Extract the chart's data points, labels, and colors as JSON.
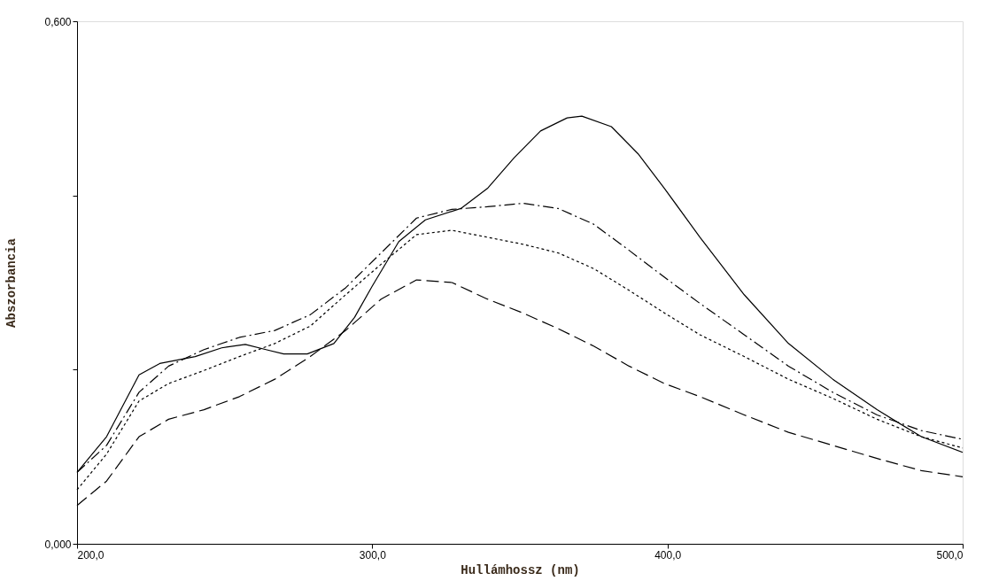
{
  "chart_data": {
    "type": "line",
    "xlabel": "Hullámhossz (nm)",
    "ylabel": "Abszorbancia",
    "xlim": [
      200,
      500
    ],
    "ylim": [
      0,
      0.6
    ],
    "xticks": [
      {
        "value": 200,
        "label": "200,0"
      },
      {
        "value": 300,
        "label": "300,0"
      },
      {
        "value": 400,
        "label": "400,0"
      },
      {
        "value": 500,
        "label": "500,0"
      }
    ],
    "yticks": [
      {
        "value": 0,
        "label": "0,000"
      },
      {
        "value": 0.2,
        "label": null
      },
      {
        "value": 0.4,
        "label": null
      },
      {
        "value": 0.6,
        "label": "0,600"
      }
    ],
    "x": [
      200,
      210,
      221,
      231,
      243,
      255,
      267,
      279,
      291,
      303,
      315,
      327,
      339,
      351,
      363,
      375,
      387,
      399,
      411,
      426,
      441,
      456,
      471,
      486,
      500
    ],
    "grid": false,
    "legend": false,
    "marker": "none",
    "series": [
      {
        "color": "#000000",
        "line_style": "solid",
        "x": [
          200,
          210,
          221,
          228,
          240,
          249,
          257,
          264,
          270,
          278,
          287,
          294,
          300,
          309,
          318,
          330,
          339,
          348,
          357,
          366,
          371,
          381,
          390,
          399,
          411,
          426,
          441,
          456,
          471,
          486,
          500
        ],
        "values": [
          0.082,
          0.123,
          0.194,
          0.207,
          0.215,
          0.225,
          0.229,
          0.223,
          0.218,
          0.218,
          0.23,
          0.26,
          0.296,
          0.347,
          0.372,
          0.385,
          0.408,
          0.443,
          0.474,
          0.489,
          0.491,
          0.479,
          0.448,
          0.408,
          0.352,
          0.286,
          0.23,
          0.189,
          0.154,
          0.123,
          0.105
        ]
      },
      {
        "color": "#000000",
        "line_style": "dashdot",
        "values": [
          0.082,
          0.113,
          0.174,
          0.204,
          0.223,
          0.237,
          0.245,
          0.263,
          0.294,
          0.334,
          0.374,
          0.384,
          0.387,
          0.391,
          0.385,
          0.367,
          0.337,
          0.306,
          0.276,
          0.24,
          0.204,
          0.174,
          0.148,
          0.13,
          0.12
        ]
      },
      {
        "color": "#000000",
        "line_style": "dotted",
        "values": [
          0.062,
          0.103,
          0.164,
          0.184,
          0.199,
          0.215,
          0.23,
          0.25,
          0.286,
          0.321,
          0.355,
          0.36,
          0.352,
          0.344,
          0.334,
          0.316,
          0.291,
          0.265,
          0.24,
          0.215,
          0.189,
          0.167,
          0.143,
          0.123,
          0.11
        ]
      },
      {
        "color": "#000000",
        "line_style": "dashed",
        "values": [
          0.044,
          0.072,
          0.123,
          0.143,
          0.154,
          0.169,
          0.189,
          0.215,
          0.245,
          0.281,
          0.303,
          0.3,
          0.281,
          0.265,
          0.247,
          0.227,
          0.204,
          0.184,
          0.169,
          0.148,
          0.128,
          0.113,
          0.098,
          0.084,
          0.077
        ]
      }
    ]
  }
}
